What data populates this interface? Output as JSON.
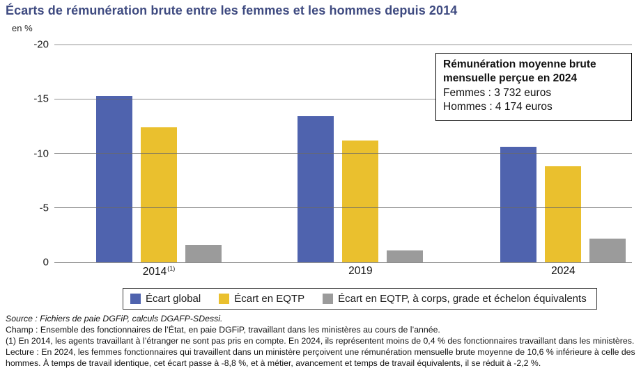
{
  "header": {
    "title": "Écarts de rémunération brute entre les femmes et les hommes depuis 2014",
    "unit_label": "en %",
    "title_color": "#3e4a80"
  },
  "chart_data": {
    "type": "bar",
    "title": "Écarts de rémunération brute entre les femmes et les hommes depuis 2014",
    "ylabel": "en %",
    "xlabel": "",
    "categories": [
      "2014",
      "2019",
      "2024"
    ],
    "category_notes": [
      "(1)",
      "",
      ""
    ],
    "series": [
      {
        "name": "Écart global",
        "color": "#4f63ae",
        "values": [
          -15.3,
          -13.4,
          -10.6
        ]
      },
      {
        "name": "Écart en EQTP",
        "color": "#eac02e",
        "values": [
          -12.4,
          -11.2,
          -8.8
        ]
      },
      {
        "name": "Écart en EQTP, à corps, grade et échelon équivalents",
        "color": "#9b9b9b",
        "values": [
          -1.6,
          -1.1,
          -2.2
        ]
      }
    ],
    "y_axis": {
      "min": 0,
      "max": -20,
      "inverted": true,
      "ticks": [
        -20,
        -15,
        -10,
        -5,
        0
      ],
      "grid": true
    },
    "legend_position": "bottom",
    "annotation": "Rémunération moyenne brute mensuelle perçue en 2024 — Femmes : 3 732 euros — Hommes : 4 174 euros"
  },
  "annotation_box": {
    "title": "Rémunération moyenne brute mensuelle perçue en 2024",
    "femmes": "Femmes : 3 732 euros",
    "hommes": "Hommes : 4 174 euros"
  },
  "footer": {
    "source": "Source : Fichiers de paie DGFiP, calculs DGAFP-SDessi.",
    "champ": "Champ : Ensemble des fonctionnaires de l’État, en paie DGFiP, travaillant dans les ministères au cours de l’année.",
    "note1": "(1) En 2014, les agents travaillant à l’étranger ne sont pas pris en compte. En 2024, ils représentent moins de 0,4 % des fonctionnaires travaillant dans les ministères.",
    "lecture": "Lecture : En 2024, les femmes fonctionnaires qui travaillent dans un ministère perçoivent une rémunération mensuelle brute moyenne de 10,6 % inférieure à celle des hommes. À temps de travail identique, cet écart passe à -8,8 %, et à métier, avancement et temps de travail équivalents, il se réduit à -2,2 %."
  }
}
